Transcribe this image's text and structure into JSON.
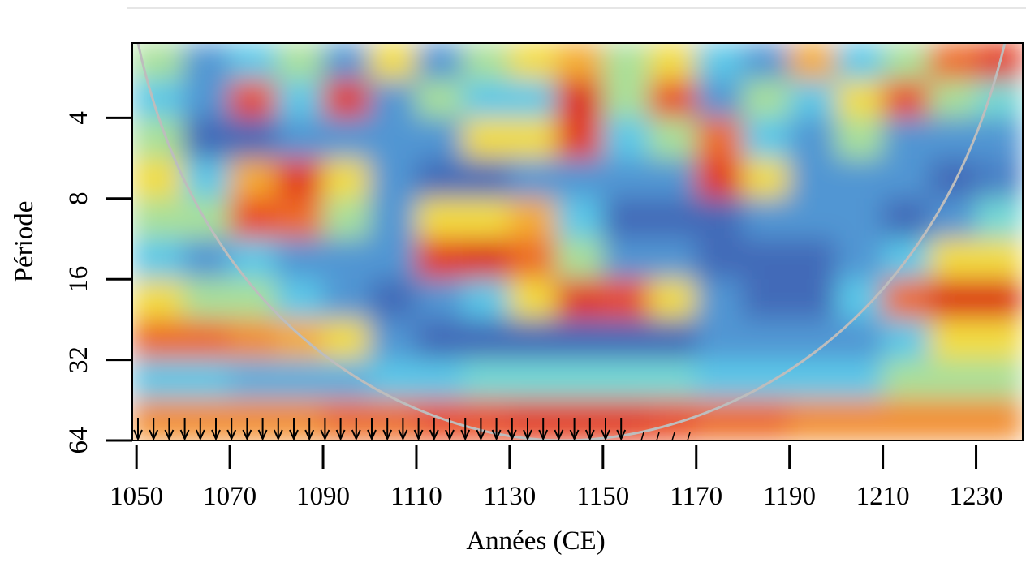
{
  "chart_data": {
    "type": "heatmap",
    "x_label": "Années (CE)",
    "y_label": "Période",
    "x_bins": [
      1049,
      1060,
      1070,
      1080,
      1090,
      1100,
      1110,
      1120,
      1130,
      1140,
      1150,
      1160,
      1170,
      1180,
      1190,
      1200,
      1210,
      1220,
      1230,
      1240
    ],
    "y_bins": [
      2.1,
      2.9,
      4,
      5.7,
      8,
      11.3,
      16,
      22.6,
      32,
      45,
      64
    ],
    "values": [
      [
        0.5,
        0.3,
        0.4,
        0.5,
        0.3,
        0.6,
        0.3,
        0.5,
        0.6,
        0.7,
        0.5,
        0.6,
        0.4,
        0.3,
        0.7,
        0.4,
        0.5,
        0.8,
        0.9
      ],
      [
        0.4,
        0.3,
        0.85,
        0.4,
        0.9,
        0.3,
        0.5,
        0.4,
        0.4,
        0.95,
        0.5,
        0.85,
        0.3,
        0.5,
        0.4,
        0.6,
        0.85,
        0.5,
        0.45
      ],
      [
        0.5,
        0.2,
        0.2,
        0.3,
        0.3,
        0.3,
        0.3,
        0.6,
        0.6,
        0.9,
        0.4,
        0.5,
        0.8,
        0.4,
        0.3,
        0.5,
        0.3,
        0.3,
        0.3
      ],
      [
        0.6,
        0.4,
        0.7,
        0.9,
        0.6,
        0.3,
        0.2,
        0.2,
        0.3,
        0.3,
        0.3,
        0.3,
        0.9,
        0.6,
        0.3,
        0.3,
        0.3,
        0.2,
        0.25
      ],
      [
        0.5,
        0.5,
        0.85,
        0.8,
        0.5,
        0.3,
        0.6,
        0.6,
        0.7,
        0.4,
        0.2,
        0.2,
        0.2,
        0.3,
        0.3,
        0.3,
        0.2,
        0.3,
        0.45
      ],
      [
        0.4,
        0.3,
        0.4,
        0.3,
        0.3,
        0.3,
        0.9,
        0.95,
        0.8,
        0.5,
        0.3,
        0.3,
        0.2,
        0.2,
        0.2,
        0.3,
        0.4,
        0.6,
        0.6
      ],
      [
        0.6,
        0.5,
        0.5,
        0.4,
        0.3,
        0.2,
        0.3,
        0.4,
        0.6,
        0.9,
        0.85,
        0.6,
        0.3,
        0.2,
        0.2,
        0.4,
        0.8,
        0.95,
        0.95
      ],
      [
        0.8,
        0.8,
        0.75,
        0.7,
        0.6,
        0.3,
        0.2,
        0.2,
        0.2,
        0.2,
        0.2,
        0.2,
        0.3,
        0.3,
        0.3,
        0.3,
        0.4,
        0.6,
        0.6
      ],
      [
        0.4,
        0.4,
        0.35,
        0.35,
        0.35,
        0.4,
        0.4,
        0.45,
        0.45,
        0.45,
        0.45,
        0.45,
        0.4,
        0.4,
        0.4,
        0.4,
        0.5,
        0.5,
        0.5
      ],
      [
        0.75,
        0.75,
        0.75,
        0.75,
        0.8,
        0.8,
        0.85,
        0.85,
        0.9,
        0.9,
        0.9,
        0.85,
        0.8,
        0.8,
        0.75,
        0.75,
        0.75,
        0.75,
        0.75
      ]
    ],
    "colormap": [
      "#27318a",
      "#3a52a8",
      "#4f8fd0",
      "#5fd6ee",
      "#f2ea45",
      "#f5a531",
      "#e8461f",
      "#d41d12"
    ],
    "xlim": [
      1049.1,
      1240
    ],
    "ylim": [
      64,
      2.1
    ],
    "y_log_base": 2,
    "xticks": [
      1050,
      1070,
      1090,
      1110,
      1130,
      1150,
      1170,
      1190,
      1210,
      1230
    ],
    "yticks": [
      4,
      8,
      16,
      32,
      64
    ]
  }
}
